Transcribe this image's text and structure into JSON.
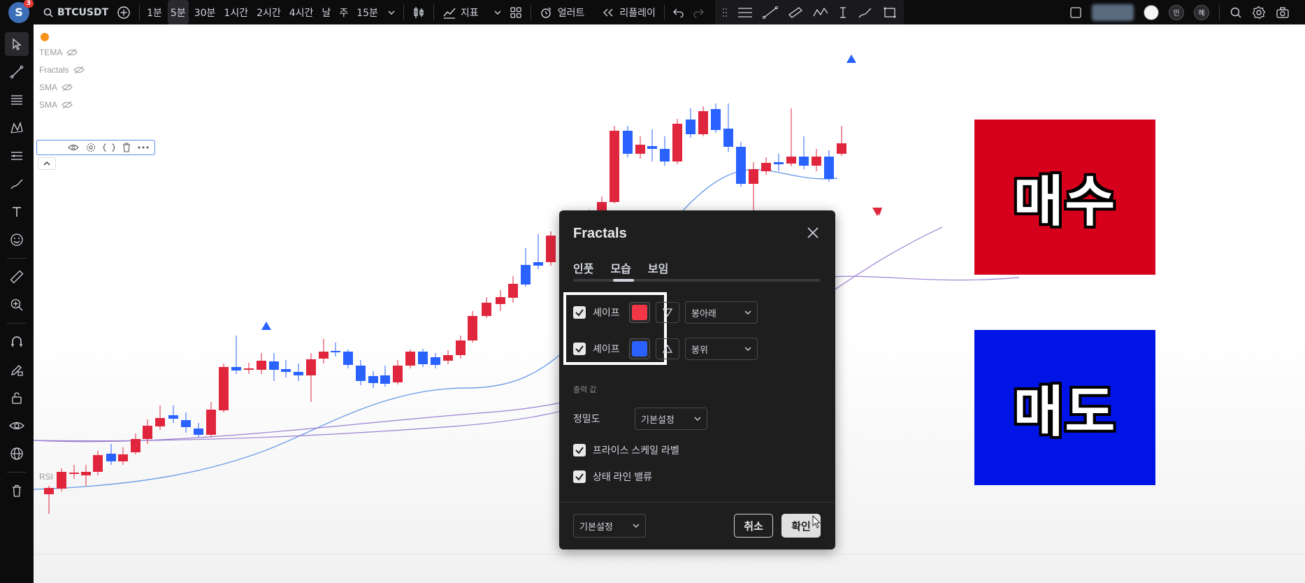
{
  "topbar": {
    "avatar_letter": "S",
    "avatar_badge": "3",
    "symbol": "BTCUSDT",
    "timeframes": [
      "1분",
      "5분",
      "30분",
      "1시간",
      "2시간",
      "4시간",
      "날",
      "주",
      "15분"
    ],
    "active_timeframe_index": 1,
    "indicators_label": "지표",
    "alert_label": "얼러트",
    "replay_label": "리플레이",
    "right_avatars": [
      "민",
      "혜"
    ]
  },
  "chart": {
    "legends": [
      "TEMA",
      "Fractals",
      "SMA",
      "SMA"
    ],
    "rsi_label": "RSI",
    "colors": {
      "up": "#e0263d",
      "down": "#2962ff",
      "ma_blue": "#6fa0e8",
      "ma_purple": "#9b7fd1"
    }
  },
  "overlays": {
    "buy": {
      "text": "매수",
      "color": "#d6001c"
    },
    "sell": {
      "text": "매도",
      "color": "#0014e6"
    }
  },
  "dialog": {
    "title": "Fractals",
    "tabs": [
      "인풋",
      "모습",
      "보임"
    ],
    "active_tab": "모습",
    "shape_rows": [
      {
        "checked": true,
        "label": "셰이프",
        "color": "#f23645",
        "shape_icon": "triangle-down-icon",
        "location": "봉아래"
      },
      {
        "checked": true,
        "label": "셰이프",
        "color": "#2962ff",
        "shape_icon": "triangle-up-icon",
        "location": "봉위"
      }
    ],
    "output_section_label": "출력 값",
    "precision_label": "정밀도",
    "precision_value": "기본설정",
    "price_scale_label": {
      "checked": true,
      "text": "프라이스 스케일 라벨"
    },
    "status_line_values": {
      "checked": true,
      "text": "상태 라인 밸류"
    },
    "defaults_value": "기본설정",
    "cancel_label": "취소",
    "ok_label": "확인"
  }
}
